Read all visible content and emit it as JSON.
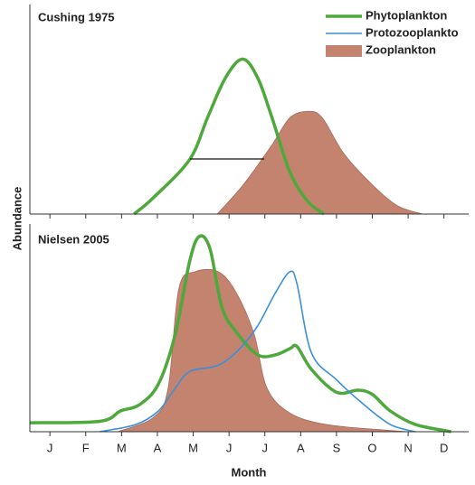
{
  "chart_data": [
    {
      "type": "line",
      "title": "Cushing 1975",
      "ylabel": "Abundance",
      "xlim": [
        -0.56,
        11.69
      ],
      "ylim": [
        0,
        100
      ],
      "xticks": [
        {
          "value": 0,
          "label": "J"
        },
        {
          "value": 1,
          "label": "F"
        },
        {
          "value": 2,
          "label": "M"
        },
        {
          "value": 3,
          "label": "A"
        },
        {
          "value": 4,
          "label": "M"
        },
        {
          "value": 5,
          "label": "J"
        },
        {
          "value": 6,
          "label": "J"
        },
        {
          "value": 7,
          "label": "A"
        },
        {
          "value": 8,
          "label": "S"
        },
        {
          "value": 9,
          "label": "O"
        },
        {
          "value": 10,
          "label": "N"
        },
        {
          "value": 11,
          "label": "D"
        }
      ],
      "series": [
        {
          "kind": "area",
          "color": "#c4836f",
          "x": [
            4.67,
            5.4,
            6.2,
            6.7,
            7.2,
            7.6,
            8.2,
            9.0,
            9.7,
            10.4
          ],
          "values": [
            0,
            14,
            33,
            46,
            49,
            46,
            29,
            14,
            4,
            0
          ]
        },
        {
          "kind": "line",
          "color": "#4ea83c",
          "x": [
            2.35,
            2.9,
            3.9,
            4.4,
            4.9,
            5.38,
            5.8,
            6.2,
            6.7,
            7.2,
            7.65
          ],
          "values": [
            0,
            8,
            26,
            46,
            65,
            74,
            65,
            46,
            20,
            6,
            0
          ]
        }
      ]
    },
    {
      "type": "line",
      "title": "Nielsen 2005",
      "xlabel": "Month",
      "xlim": [
        -0.56,
        11.69
      ],
      "ylim": [
        0,
        100
      ],
      "xticks": [
        {
          "value": 0,
          "label": "J"
        },
        {
          "value": 1,
          "label": "F"
        },
        {
          "value": 2,
          "label": "M"
        },
        {
          "value": 3,
          "label": "A"
        },
        {
          "value": 4,
          "label": "M"
        },
        {
          "value": 5,
          "label": "J"
        },
        {
          "value": 6,
          "label": "J"
        },
        {
          "value": 7,
          "label": "A"
        },
        {
          "value": 8,
          "label": "S"
        },
        {
          "value": 9,
          "label": "O"
        },
        {
          "value": 10,
          "label": "N"
        },
        {
          "value": 11,
          "label": "D"
        }
      ],
      "series": [
        {
          "name": "Phytoplankton",
          "kind": "line",
          "color": "#4ea83c",
          "x": [
            -0.56,
            1.39,
            1.97,
            2.5,
            3.03,
            3.5,
            3.9,
            4.17,
            4.47,
            4.8,
            5.2,
            5.8,
            6.3,
            6.7,
            6.9,
            7.3,
            8.0,
            8.6,
            9.0,
            9.5,
            10.2,
            11.2
          ],
          "values": [
            4.3,
            5,
            10,
            13,
            23,
            47,
            82,
            94,
            88,
            60,
            48,
            37,
            37,
            40,
            41,
            30,
            19,
            20,
            18,
            10,
            3.5,
            0
          ]
        },
        {
          "name": "Protozooplankto",
          "kind": "line",
          "color": "#3b8fd8",
          "x": [
            1.39,
            2.4,
            3.03,
            3.5,
            3.9,
            4.7,
            5.3,
            5.8,
            6.3,
            6.7,
            6.9,
            7.3,
            8.0,
            8.7,
            9.5,
            10.2
          ],
          "values": [
            0,
            3.5,
            10,
            21,
            29,
            32,
            40,
            51,
            67,
            77,
            71,
            38,
            25,
            14,
            3.5,
            0
          ]
        },
        {
          "name": "Zooplankton",
          "kind": "area",
          "color": "#c4836f",
          "x": [
            1.9,
            2.9,
            3.3,
            3.6,
            4.05,
            4.7,
            5.2,
            5.7,
            6.06,
            6.7,
            7.7,
            9.2,
            10.0
          ],
          "values": [
            0,
            7,
            21,
            69,
            77,
            77,
            67,
            47,
            21,
            9,
            3.5,
            1,
            0
          ]
        }
      ]
    }
  ]
}
